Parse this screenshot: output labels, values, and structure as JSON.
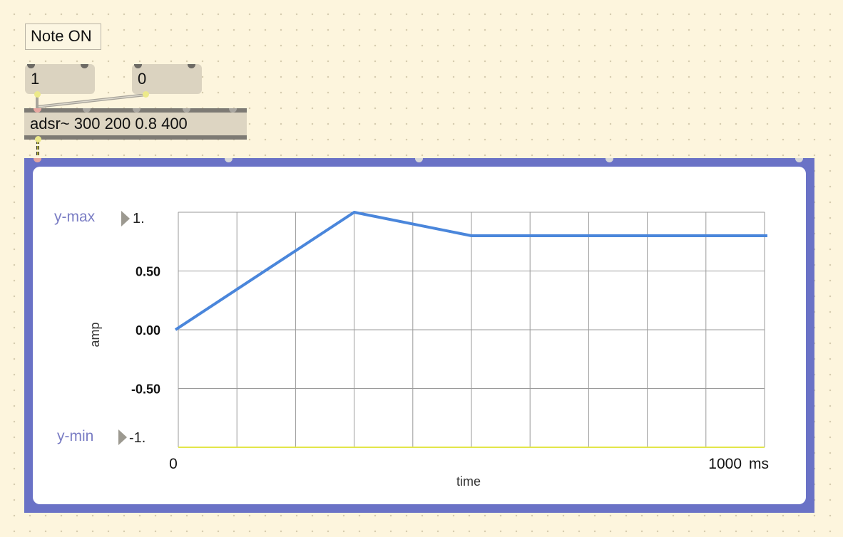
{
  "comment": {
    "text": "Note ON"
  },
  "messages": [
    {
      "label": "1"
    },
    {
      "label": "0"
    }
  ],
  "adsr": {
    "text": "adsr~ 300 200 0.8 400"
  },
  "scope": {
    "ymax_label": "y-max",
    "ymin_label": "y-min",
    "ymax_value": "1.",
    "ymin_value": "-1.",
    "unit": "ms"
  },
  "chart_data": {
    "type": "line",
    "xlabel": "time",
    "ylabel": "amp",
    "xlim": [
      0,
      1000
    ],
    "ylim": [
      -1,
      1
    ],
    "x_tick_labels": [
      "0",
      "1000"
    ],
    "y_tick_labels": [
      "-0.50",
      "0.00",
      "0.50"
    ],
    "grid": true,
    "series": [
      {
        "x": [
          0,
          300,
          500,
          1000
        ],
        "y": [
          0,
          1,
          0.8,
          0.8
        ],
        "color": "#4a86db"
      }
    ]
  }
}
